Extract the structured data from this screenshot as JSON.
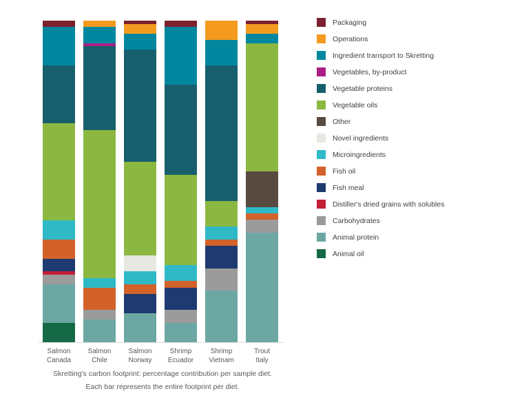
{
  "caption": {
    "line1": "Skretting's carbon footprint: percentage contribution per sample diet.",
    "line2": "Each bar represents the entire footprint per diet."
  },
  "chart_data": {
    "type": "bar",
    "stacked": true,
    "orientation": "vertical",
    "unit": "percent of total footprint per diet",
    "ylim": [
      0,
      100
    ],
    "grid": false,
    "legend_position": "right",
    "title": "Skretting's carbon footprint: percentage contribution per sample diet.",
    "categories": [
      "Salmon Canada",
      "Salmon Chile",
      "Salmon Norway",
      "Shrimp Ecuador",
      "Shrimp Vietnam",
      "Trout Italy"
    ],
    "category_label_lines": [
      [
        "Salmon",
        "Canada"
      ],
      [
        "Salmon",
        "Chile"
      ],
      [
        "Salmon",
        "Norway"
      ],
      [
        "Shrimp",
        "Ecuador"
      ],
      [
        "Shrimp",
        "Vietnam"
      ],
      [
        "Trout",
        "Italy"
      ]
    ],
    "series": [
      {
        "name": "Packaging",
        "color": "#7b2130",
        "values": [
          2,
          0,
          1,
          2,
          0,
          1
        ]
      },
      {
        "name": "Operations",
        "color": "#f49b1f",
        "values": [
          0,
          2,
          3,
          0,
          6,
          3
        ]
      },
      {
        "name": "Ingredient transport to Skretting",
        "color": "#00879f",
        "values": [
          12,
          5,
          5,
          18,
          8,
          3
        ]
      },
      {
        "name": "Vegetables, by-product",
        "color": "#aa1f87",
        "values": [
          0,
          1,
          0,
          0,
          0,
          0
        ]
      },
      {
        "name": "Vegetable proteins",
        "color": "#175f6c",
        "values": [
          18,
          26,
          35,
          28,
          42,
          0
        ]
      },
      {
        "name": "Vegetable oils",
        "color": "#8cb842",
        "values": [
          30,
          46,
          29,
          28,
          8,
          40
        ]
      },
      {
        "name": "Other",
        "color": "#594a41",
        "values": [
          0,
          0,
          0,
          0,
          0,
          11
        ]
      },
      {
        "name": "Novel ingredients",
        "color": "#e8e8e3",
        "values": [
          0,
          0,
          5,
          0,
          0,
          0
        ]
      },
      {
        "name": "Microingredients",
        "color": "#2fb9c7",
        "values": [
          6,
          3,
          4,
          5,
          4,
          2
        ]
      },
      {
        "name": "Fish oil",
        "color": "#d2622a",
        "values": [
          6,
          7,
          3,
          2,
          2,
          2
        ]
      },
      {
        "name": "Fish meal",
        "color": "#1e3a70",
        "values": [
          4,
          0,
          6,
          7,
          7,
          0
        ]
      },
      {
        "name": "Distiller's dried grains with solubles",
        "color": "#c31f36",
        "values": [
          1,
          0,
          0,
          0,
          0,
          0
        ]
      },
      {
        "name": "Carbohydrates",
        "color": "#9c9b9b",
        "values": [
          3,
          3,
          0,
          4,
          7,
          4
        ]
      },
      {
        "name": "Animal protein",
        "color": "#6ca7a3",
        "values": [
          12,
          7,
          9,
          6,
          16,
          34
        ]
      },
      {
        "name": "Animal oil",
        "color": "#156946",
        "values": [
          6,
          0,
          0,
          0,
          0,
          0
        ]
      }
    ]
  }
}
